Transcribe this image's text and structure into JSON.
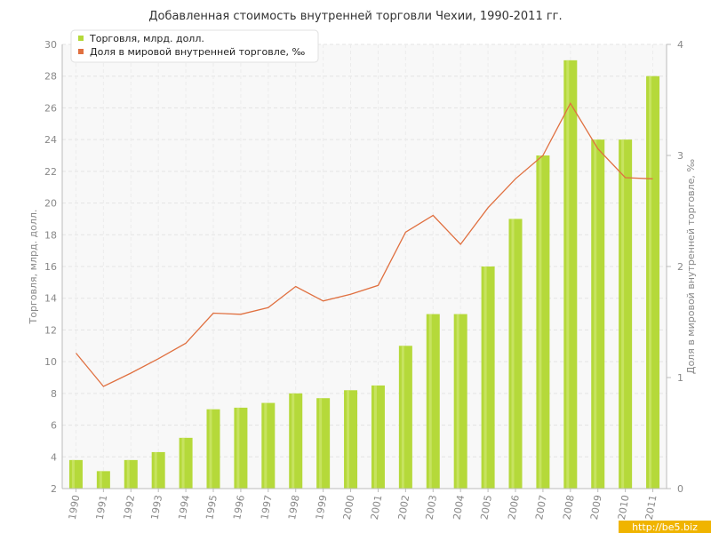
{
  "chart_data": {
    "type": "bar+line",
    "title": "Добавленная стоимость внутренней торговли Чехии, 1990-2011 гг.",
    "categories": [
      "1990",
      "1991",
      "1992",
      "1993",
      "1994",
      "1995",
      "1996",
      "1997",
      "1998",
      "1999",
      "2000",
      "2001",
      "2002",
      "2003",
      "2004",
      "2005",
      "2006",
      "2007",
      "2008",
      "2009",
      "2010",
      "2011"
    ],
    "series": [
      {
        "name": "Торговля, млрд. долл.",
        "type": "bar",
        "axis": "left",
        "color": "#b5d93a",
        "values": [
          3.8,
          3.1,
          3.8,
          4.3,
          5.2,
          7.0,
          7.1,
          7.4,
          8.0,
          7.7,
          8.2,
          8.5,
          11.0,
          13.0,
          13.0,
          16.0,
          19.0,
          23.0,
          29.0,
          24.0,
          24.0,
          28.0
        ]
      },
      {
        "name": "Доля в мировой внутренней торговле, ‰",
        "type": "line",
        "axis": "right",
        "color": "#e07040",
        "values": [
          1.22,
          0.92,
          1.04,
          1.17,
          1.31,
          1.58,
          1.57,
          1.63,
          1.82,
          1.69,
          1.75,
          1.83,
          2.31,
          2.46,
          2.2,
          2.53,
          2.79,
          3.0,
          3.47,
          3.06,
          2.8,
          2.79
        ]
      }
    ],
    "ylabel": "Торговля, млрд. долл.",
    "y2label": "Доля в мировой внутренней торговле, ‰",
    "ylim": [
      2,
      30
    ],
    "y2lim": [
      0,
      4
    ],
    "yticks": [
      2,
      4,
      6,
      8,
      10,
      12,
      14,
      16,
      18,
      20,
      22,
      24,
      26,
      28,
      30
    ],
    "y2ticks": [
      0,
      1,
      2,
      3,
      4
    ],
    "grid": true,
    "legend_position": "top-left"
  },
  "watermark": "http://be5.biz"
}
